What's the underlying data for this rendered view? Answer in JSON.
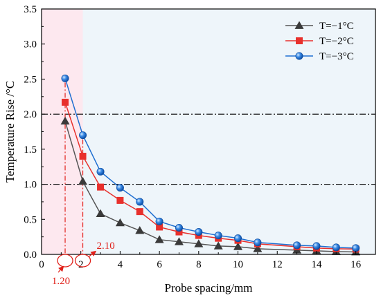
{
  "chart_data": {
    "type": "line",
    "xlabel": "Probe spacing/mm",
    "ylabel": "Temperature Rise /°C",
    "xlim": [
      0,
      17
    ],
    "ylim": [
      0,
      3.5
    ],
    "xticks": [
      0,
      2,
      4,
      6,
      8,
      10,
      12,
      14,
      16
    ],
    "yticks": [
      0.0,
      0.5,
      1.0,
      1.5,
      2.0,
      2.5,
      3.0,
      3.5
    ],
    "ytick_labels": [
      "0.0",
      "0.5",
      "1.0",
      "1.5",
      "2.0",
      "2.5",
      "3.0",
      "3.5"
    ],
    "legend_position": "top-right",
    "grid": false,
    "x": [
      1.2,
      2.1,
      3,
      4,
      5,
      6,
      7,
      8,
      9,
      10,
      11,
      13,
      14,
      15,
      16
    ],
    "series": [
      {
        "name": "T=−1°C",
        "marker": "triangle",
        "color": "#555555",
        "values": [
          1.9,
          1.04,
          0.58,
          0.45,
          0.34,
          0.21,
          0.18,
          0.15,
          0.12,
          0.11,
          0.08,
          0.06,
          0.05,
          0.04,
          0.035
        ]
      },
      {
        "name": "T=−2°C",
        "marker": "square",
        "color": "#e8302c",
        "values": [
          2.17,
          1.4,
          0.96,
          0.77,
          0.61,
          0.39,
          0.32,
          0.27,
          0.23,
          0.2,
          0.15,
          0.11,
          0.09,
          0.08,
          0.075
        ]
      },
      {
        "name": "T=−3°C",
        "marker": "circle",
        "color": "#1f6fd1",
        "values": [
          2.51,
          1.7,
          1.18,
          0.95,
          0.75,
          0.47,
          0.38,
          0.32,
          0.27,
          0.23,
          0.17,
          0.13,
          0.12,
          0.1,
          0.09
        ]
      }
    ],
    "reference_lines": [
      {
        "axis": "y",
        "value": 2.0,
        "style": "dash-dot"
      },
      {
        "axis": "y",
        "value": 1.0,
        "style": "dash-dot"
      }
    ],
    "shaded_regions": [
      {
        "x": [
          0,
          2.1
        ],
        "color": "#fde8ef"
      },
      {
        "x": [
          2.1,
          17
        ],
        "color": "#eef5fa"
      }
    ],
    "annotations": [
      {
        "text": "1.20",
        "x": 1.2,
        "color": "#e0201a"
      },
      {
        "text": "2.10",
        "x": 2.1,
        "color": "#e0201a"
      }
    ]
  }
}
